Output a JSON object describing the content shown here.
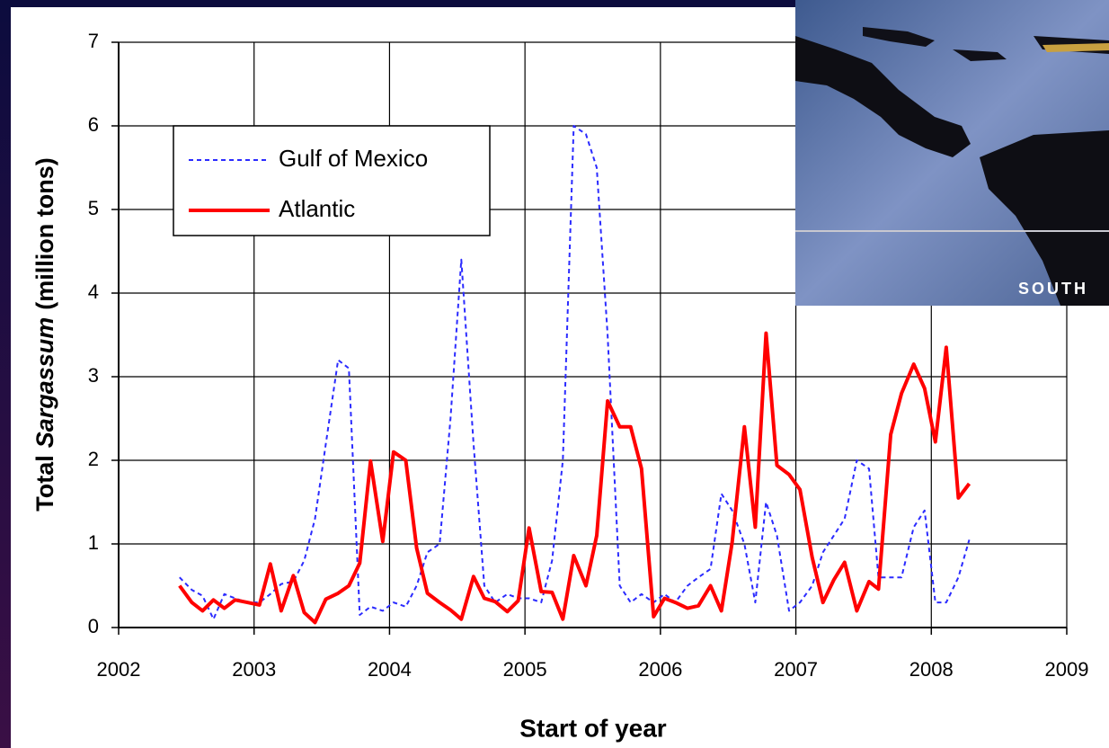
{
  "chart_data": {
    "type": "line",
    "ylabel": [
      "Total",
      "Sargassum",
      "(million tons)"
    ],
    "xlabel": "Start of year",
    "xlim": [
      2002,
      2009
    ],
    "xticks": [
      2002,
      2003,
      2004,
      2005,
      2006,
      2007,
      2008,
      2009
    ],
    "ylim": [
      0,
      7
    ],
    "yticks": [
      0,
      1,
      2,
      3,
      4,
      5,
      6,
      7
    ],
    "grid": true,
    "legend": "upper left",
    "x": [
      2002.45,
      2002.54,
      2002.62,
      2002.7,
      2002.78,
      2002.86,
      2002.95,
      2003.04,
      2003.12,
      2003.2,
      2003.29,
      2003.37,
      2003.45,
      2003.53,
      2003.62,
      2003.7,
      2003.78,
      2003.86,
      2003.95,
      2004.03,
      2004.12,
      2004.2,
      2004.28,
      2004.37,
      2004.45,
      2004.53,
      2004.62,
      2004.7,
      2004.78,
      2004.87,
      2004.95,
      2005.03,
      2005.12,
      2005.2,
      2005.28,
      2005.36,
      2005.45,
      2005.53,
      2005.61,
      2005.7,
      2005.78,
      2005.86,
      2005.95,
      2006.03,
      2006.11,
      2006.2,
      2006.28,
      2006.37,
      2006.45,
      2006.53,
      2006.62,
      2006.7,
      2006.78,
      2006.86,
      2006.95,
      2007.03,
      2007.12,
      2007.2,
      2007.28,
      2007.36,
      2007.45,
      2007.54,
      2007.61,
      2007.7,
      2007.78,
      2007.87,
      2007.95,
      2008.03,
      2008.11,
      2008.2,
      2008.28
    ],
    "series": [
      {
        "name": "Gulf of Mexico",
        "color": "#2b2bff",
        "dashed": true,
        "values": [
          0.6,
          0.45,
          0.38,
          0.1,
          0.4,
          0.35,
          0.3,
          0.3,
          0.4,
          0.52,
          0.55,
          0.8,
          1.3,
          2.2,
          3.2,
          3.1,
          0.15,
          0.25,
          0.2,
          0.3,
          0.25,
          0.5,
          0.9,
          1.0,
          2.5,
          4.4,
          2.2,
          0.5,
          0.3,
          0.4,
          0.35,
          0.35,
          0.3,
          0.8,
          2.0,
          6.0,
          5.9,
          5.5,
          3.5,
          0.5,
          0.3,
          0.4,
          0.3,
          0.4,
          0.3,
          0.5,
          0.6,
          0.7,
          1.6,
          1.4,
          1.0,
          0.3,
          1.5,
          1.1,
          0.2,
          0.3,
          0.5,
          0.9,
          1.1,
          1.3,
          2.0,
          1.9,
          0.6,
          0.6,
          0.6,
          1.2,
          1.4,
          0.3,
          0.3,
          0.6,
          1.05
        ]
      },
      {
        "name": "Atlantic",
        "color": "#ff0000",
        "dashed": false,
        "values": [
          0.5,
          0.3,
          0.2,
          0.33,
          0.23,
          0.33,
          0.3,
          0.27,
          0.76,
          0.2,
          0.62,
          0.18,
          0.06,
          0.34,
          0.41,
          0.5,
          0.77,
          1.99,
          1.03,
          2.1,
          2.0,
          0.95,
          0.41,
          0.3,
          0.21,
          0.1,
          0.61,
          0.35,
          0.31,
          0.19,
          0.32,
          1.19,
          0.43,
          0.42,
          0.1,
          0.86,
          0.5,
          1.1,
          2.71,
          2.4,
          2.4,
          1.9,
          0.13,
          0.35,
          0.3,
          0.23,
          0.26,
          0.5,
          0.2,
          1.02,
          2.4,
          1.2,
          3.52,
          1.94,
          1.83,
          1.65,
          0.84,
          0.3,
          0.57,
          0.78,
          0.2,
          0.55,
          0.46,
          2.31,
          2.8,
          3.15,
          2.86,
          2.22,
          3.35,
          1.55,
          1.72
        ]
      }
    ]
  },
  "inset": {
    "label": "SOUTH"
  }
}
